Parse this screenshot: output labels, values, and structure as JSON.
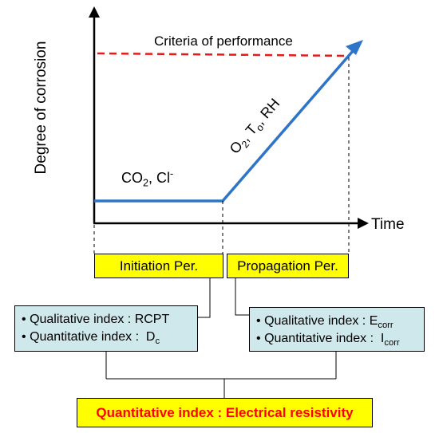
{
  "axes": {
    "y_label": "Degree of corrosion",
    "x_label": "Time"
  },
  "criteria_label": "Criteria of performance",
  "initiation_agents": {
    "text": "CO",
    "sub": "2",
    "sep": ", Cl",
    "sup": "-"
  },
  "propagation_agents": {
    "o": "O",
    "o_sub": "2",
    "t": ", T",
    "t_sub": "o",
    "rh": ", RH"
  },
  "periods": {
    "initiation": "Initiation Per.",
    "propagation": "Propagation Per."
  },
  "left_box": {
    "bullet": "•",
    "line1": "Qualitative index : RCPT",
    "line2_prefix": "Quantitative index :  D",
    "line2_sub": "c"
  },
  "right_box": {
    "bullet": "•",
    "line1_prefix": "Qualitative index : E",
    "line1_sub": "corr",
    "line2_prefix": "Quantitative index :  I",
    "line2_sub": "corr"
  },
  "final_box": "Quantitative index : Electrical resistivity",
  "colors": {
    "curve": "#2e75c8",
    "criteria": "#e31b1b",
    "period_fill": "#ffff00",
    "index_fill": "#cfe8ec",
    "final_text": "#ff0000"
  }
}
